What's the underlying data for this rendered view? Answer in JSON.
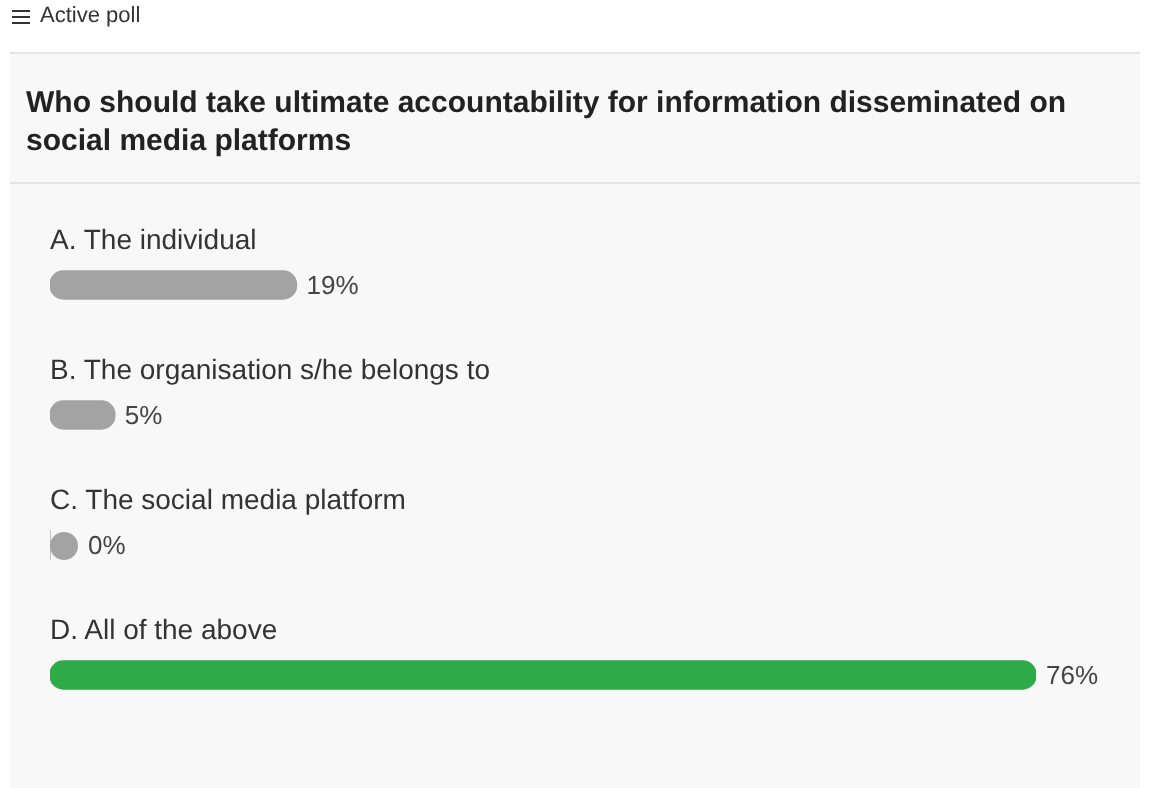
{
  "chart_data": {
    "type": "bar",
    "orientation": "horizontal",
    "title": "Who should take ultimate accountability for information disseminated on social media platforms",
    "annotations": [
      "Active poll"
    ],
    "categories": [
      "A. The individual",
      "B. The organisation s/he belongs to",
      "C. The social media platform",
      "D. All of the above"
    ],
    "values": [
      19,
      5,
      0,
      76
    ],
    "colors": [
      "#a3a3a3",
      "#a3a3a3",
      "#a3a3a3",
      "#2eaa48"
    ],
    "value_labels": [
      "19%",
      "5%",
      "0%",
      "76%"
    ],
    "legend": false,
    "tick_labels": false
  }
}
